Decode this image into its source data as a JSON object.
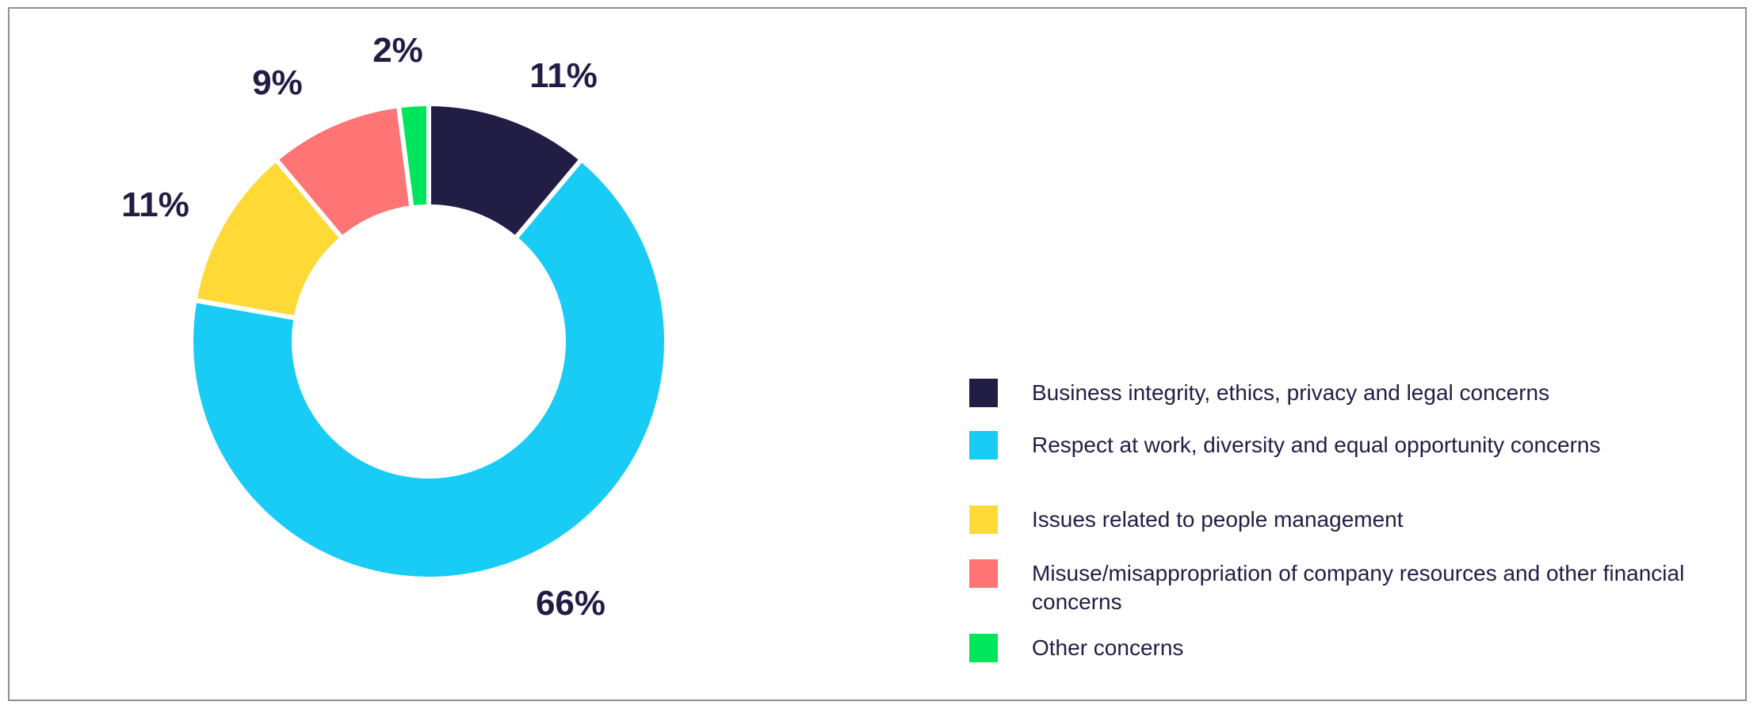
{
  "chart_data": {
    "type": "pie",
    "variant": "donut",
    "title": "",
    "legend_position": "right",
    "slices": [
      {
        "label": "Business integrity, ethics, privacy and legal concerns",
        "value": 11,
        "display": "11%",
        "color": "#221d45"
      },
      {
        "label": "Respect at work, diversity and equal opportunity concerns",
        "value": 66,
        "display": "66%",
        "color": "#19ccf5"
      },
      {
        "label": "Issues related to people management",
        "value": 11,
        "display": "11%",
        "color": "#ffd935"
      },
      {
        "label": "Misuse/misappropriation of company resources and other financial concerns",
        "value": 9,
        "display": "9%",
        "color": "#ff7474"
      },
      {
        "label": "Other concerns",
        "value": 2,
        "display": "2%",
        "color": "#00e65c"
      }
    ]
  }
}
